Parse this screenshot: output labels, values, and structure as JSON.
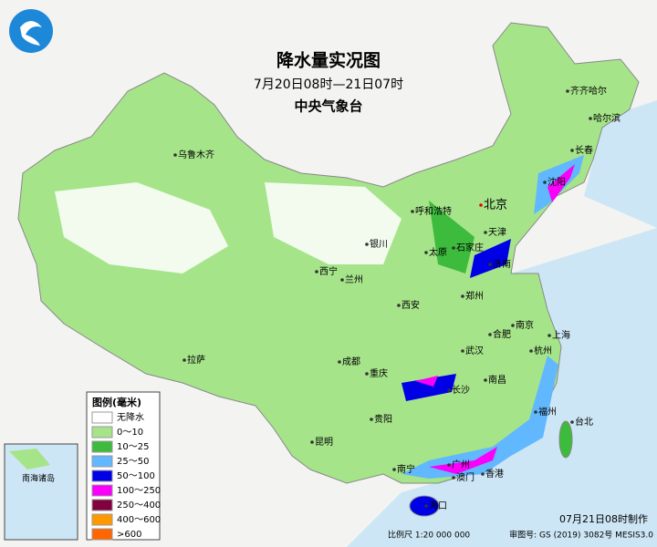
{
  "header": {
    "title": "降水量实况图",
    "period": "7月20日08时—21日07时",
    "agency": "中央气象台"
  },
  "legend": {
    "title": "图例(毫米)",
    "items": [
      {
        "label": "无降水",
        "color": "#ffffff"
      },
      {
        "label": "0～10",
        "color": "#a6e48a"
      },
      {
        "label": "10～25",
        "color": "#3dbb3d"
      },
      {
        "label": "25～50",
        "color": "#61b8ff"
      },
      {
        "label": "50～100",
        "color": "#0000e6"
      },
      {
        "label": "100～250",
        "color": "#fa00fa"
      },
      {
        "label": "250～400",
        "color": "#800040"
      },
      {
        "label": "400～600",
        "color": "#ff9900"
      },
      {
        "label": ">600",
        "color": "#ff6600"
      }
    ]
  },
  "cities": [
    "乌鲁木齐",
    "呼和浩特",
    "北京",
    "天津",
    "石家庄",
    "太原",
    "银川",
    "西宁",
    "兰州",
    "济南",
    "郑州",
    "西安",
    "合肥",
    "南京",
    "上海",
    "武汉",
    "杭州",
    "成都",
    "重庆",
    "长沙",
    "南昌",
    "福州",
    "贵阳",
    "昆明",
    "南宁",
    "广州",
    "澳门",
    "香港",
    "海口",
    "拉萨",
    "哈尔滨",
    "长春",
    "沈阳",
    "台北",
    "齐齐哈尔"
  ],
  "inset": {
    "label": "南海诸岛"
  },
  "footer": {
    "made": "07月21日08时制作",
    "scale": "比例尺 1:20 000 000",
    "approval": "审图号: GS (2019) 3082号 MESIS3.0"
  }
}
